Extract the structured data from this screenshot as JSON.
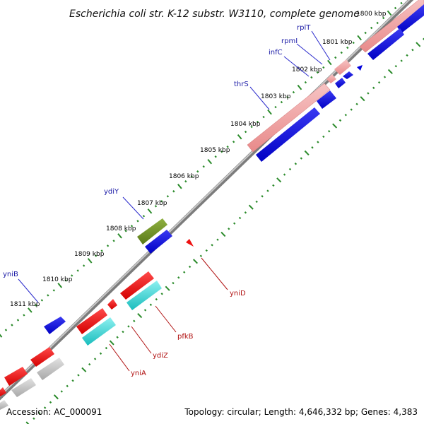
{
  "title": "Escherichia coli str. K-12 substr. W3110, complete genome",
  "footer": {
    "accession": "Accession: AC_000091",
    "summary": "Topology: circular; Length: 4,646,332 bp; Genes: 4,383"
  },
  "ruler": {
    "labels": [
      "1800 kbp",
      "1801 kbp",
      "1802 kbp",
      "1803 kbp",
      "1804 kbp",
      "1805 kbp",
      "1806 kbp",
      "1807 kbp",
      "1808 kbp",
      "1809 kbp",
      "1810 kbp",
      "1811 kbp"
    ]
  },
  "genes_forward": [
    {
      "name": "rplT",
      "color": "#2a2acc"
    },
    {
      "name": "rpmI",
      "color": "#2a2acc"
    },
    {
      "name": "infC",
      "color": "#2a2acc"
    },
    {
      "name": "thrS",
      "color": "#2a2acc"
    },
    {
      "name": "ydiY",
      "color": "#2a2acc"
    },
    {
      "name": "yniB",
      "color": "#2a2acc"
    }
  ],
  "genes_reverse": [
    {
      "name": "yniD",
      "color": "#cc2222"
    },
    {
      "name": "pfkB",
      "color": "#cc2222"
    },
    {
      "name": "ydiZ",
      "color": "#cc2222"
    },
    {
      "name": "yniA",
      "color": "#cc2222"
    }
  ],
  "colors": {
    "backbone": "#8a8a8a",
    "tick": "#2a8a2a",
    "forward_feature": "#0000dd",
    "forward_pink": "#ee9090",
    "olive": "#6b8e23",
    "reverse_feature": "#ee1111",
    "cyan": "#22cccc",
    "gray": "#c0c0c0"
  }
}
